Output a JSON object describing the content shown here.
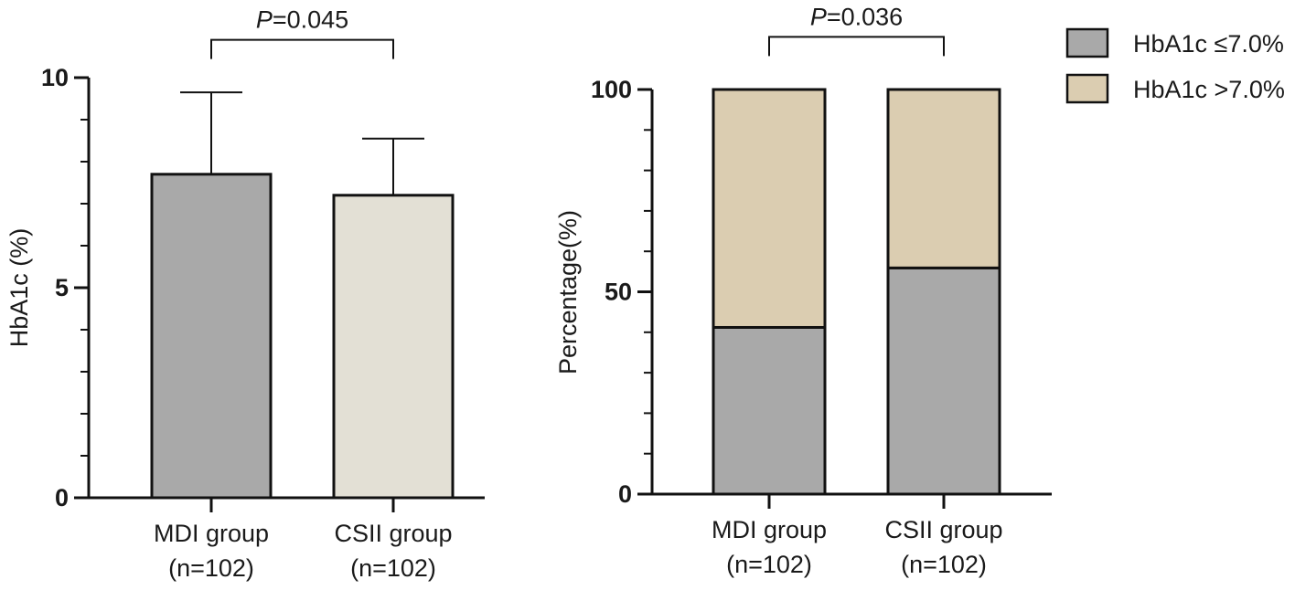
{
  "colors": {
    "mdi_bar": "#a9a9a9",
    "csii_bar": "#e3e0d5",
    "le_7": "#a9a9a9",
    "gt_7": "#dbcdb1",
    "axis": "#111111"
  },
  "chart_data": [
    {
      "type": "bar",
      "title": "",
      "xlabel": "",
      "ylabel": "HbA1c (%)",
      "ylim": [
        0,
        10
      ],
      "yticks": [
        "0",
        "5",
        "10"
      ],
      "minor_step": 1,
      "categories": [
        {
          "line1": "MDI group",
          "line2": "(n=102)"
        },
        {
          "line1": "CSII group",
          "line2": "(n=102)"
        }
      ],
      "values": [
        7.7,
        7.2
      ],
      "errors": [
        1.95,
        1.35
      ],
      "annotation": {
        "p_symbol": "P",
        "p_value": "=0.045",
        "between": [
          0,
          1
        ],
        "y": 10.9
      }
    },
    {
      "type": "bar",
      "stacked": true,
      "title": "",
      "xlabel": "",
      "ylabel": "Percentage(%)",
      "ylim": [
        0,
        100
      ],
      "yticks": [
        "0",
        "50",
        "100"
      ],
      "minor_step": 10,
      "categories": [
        {
          "line1": "MDI group",
          "line2": "(n=102)"
        },
        {
          "line1": "CSII group",
          "line2": "(n=102)"
        }
      ],
      "series": [
        {
          "name": "HbA1c ≤7.0%",
          "values": [
            41.2,
            55.9
          ]
        },
        {
          "name": "HbA1c >7.0%",
          "values": [
            58.8,
            44.1
          ]
        }
      ],
      "annotation": {
        "p_symbol": "P",
        "p_value": "=0.036",
        "between": [
          0,
          1
        ],
        "y": 113
      },
      "legend": {
        "position": "top-right"
      }
    }
  ]
}
